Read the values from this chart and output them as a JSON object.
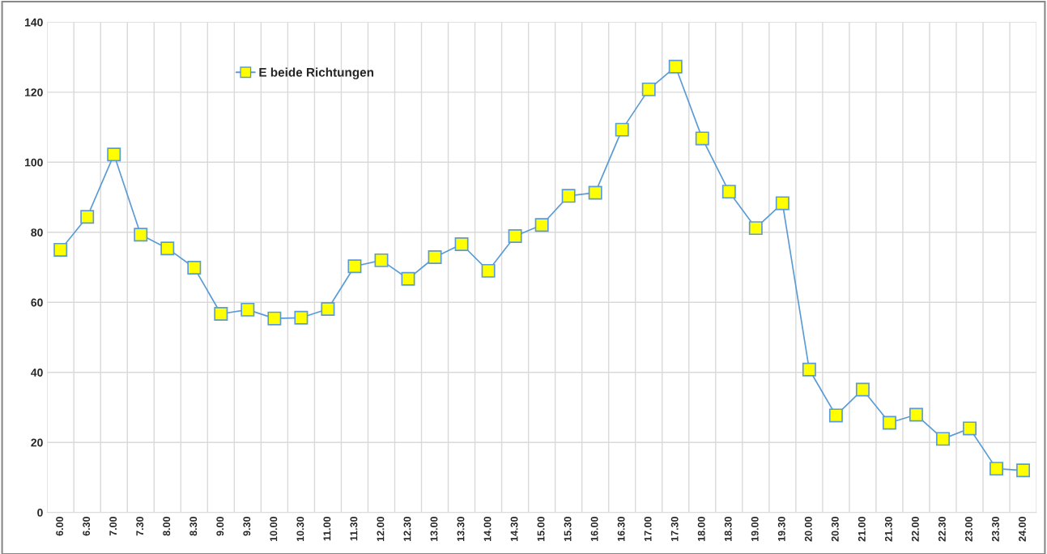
{
  "chart_data": {
    "type": "line",
    "categories": [
      "6.00",
      "6.30",
      "7.00",
      "7.30",
      "8.00",
      "8.30",
      "9.00",
      "9.30",
      "10.00",
      "10.30",
      "11.00",
      "11.30",
      "12.00",
      "12.30",
      "13.00",
      "13.30",
      "14.00",
      "14.30",
      "15.00",
      "15.30",
      "16.00",
      "16.30",
      "17.00",
      "17.30",
      "18.00",
      "18.30",
      "19.00",
      "19.30",
      "20.00",
      "20.30",
      "21.00",
      "21.30",
      "22.00",
      "22.30",
      "23.00",
      "23.30",
      "24.00"
    ],
    "series": [
      {
        "name": "E beide Richtungen",
        "color": "#5b9bd5",
        "values": [
          75,
          84.4,
          102.2,
          79.3,
          75.4,
          69.9,
          56.7,
          57.9,
          55.4,
          55.6,
          58.1,
          70.3,
          72.0,
          66.7,
          72.9,
          76.6,
          69.0,
          78.9,
          82.1,
          90.4,
          91.3,
          109.3,
          120.8,
          127.3,
          106.8,
          91.6,
          81.2,
          88.3,
          40.8,
          27.7,
          35.1,
          25.6,
          27.9,
          21.0,
          24.0,
          12.5,
          12.0
        ]
      }
    ],
    "ylim": [
      0,
      140
    ],
    "yticks": [
      0,
      20,
      40,
      60,
      80,
      100,
      120,
      140
    ],
    "grid": true,
    "legend": "top left",
    "marker": "square",
    "line_style": "solid"
  }
}
